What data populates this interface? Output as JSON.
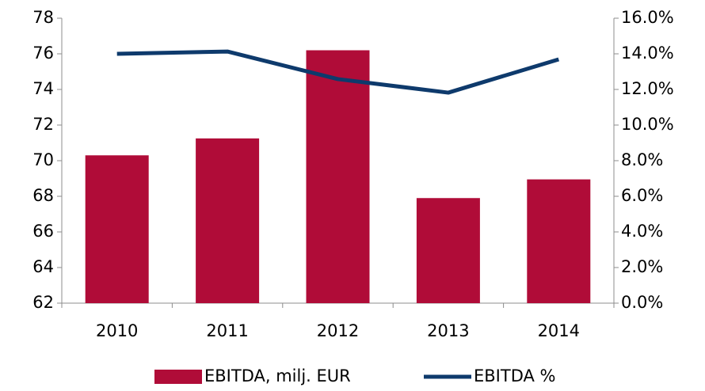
{
  "chart_data": {
    "type": "bar",
    "categories": [
      "2010",
      "2011",
      "2012",
      "2013",
      "2014"
    ],
    "series": [
      {
        "name": "EBITDA, milj. EUR",
        "type": "bar",
        "color": "#b00c38",
        "axis": "y",
        "values": [
          70.3,
          71.25,
          76.2,
          67.9,
          68.95
        ]
      },
      {
        "name": "EBITDA %",
        "type": "line",
        "color": "#0e3a6c",
        "axis": "y2",
        "values": [
          14.0,
          14.13,
          12.58,
          11.82,
          13.69
        ]
      }
    ],
    "ylim": [
      62,
      78
    ],
    "yticks": [
      62,
      64,
      66,
      68,
      70,
      72,
      74,
      76,
      78
    ],
    "y2lim": [
      0,
      16
    ],
    "y2ticks": [
      {
        "value": 0,
        "label": "0.0%"
      },
      {
        "value": 2,
        "label": "2.0%"
      },
      {
        "value": 4,
        "label": "4.0%"
      },
      {
        "value": 6,
        "label": "6.0%"
      },
      {
        "value": 8,
        "label": "8.0%"
      },
      {
        "value": 10,
        "label": "10.0%"
      },
      {
        "value": 12,
        "label": "12.0%"
      },
      {
        "value": 14,
        "label": "14.0%"
      },
      {
        "value": 16,
        "label": "16.0%"
      }
    ],
    "grid": false,
    "legend": "bottom"
  }
}
